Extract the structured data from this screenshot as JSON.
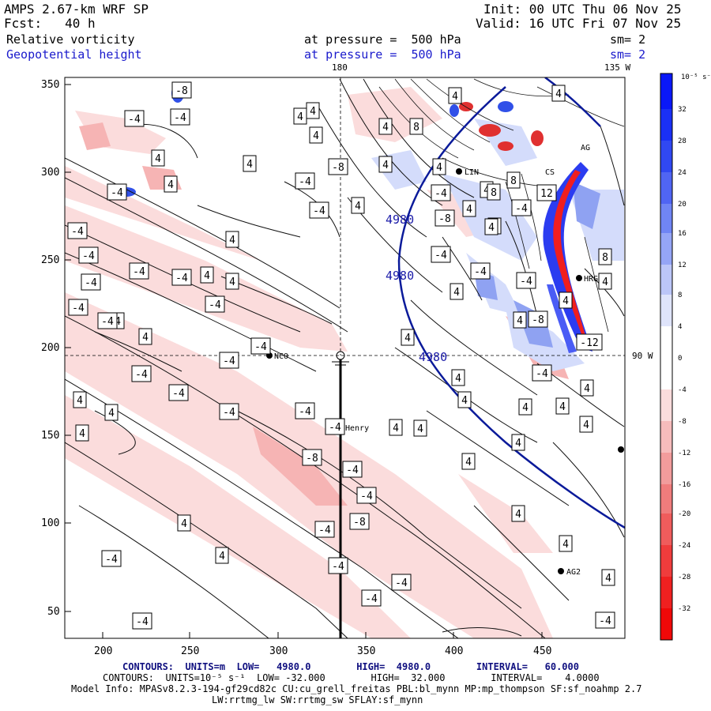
{
  "header": {
    "model": "AMPS 2.67-km WRF SP",
    "init": "Init: 00 UTC Thu 06 Nov 25",
    "forecast": "Fcst:   40 h",
    "valid": "Valid: 16 UTC Fri 07 Nov 25",
    "field1": "Relative vorticity",
    "field1_level": "at pressure =  500 hPa",
    "field1_smooth": "sm= 2",
    "field2": "Geopotential height",
    "field2_level": "at pressure =  500 hPa",
    "field2_smooth": "sm= 2"
  },
  "map": {
    "lon_180": "180",
    "lon_135w": "135 W",
    "lon_90w": "90 W",
    "x_ticks": [
      "200",
      "250",
      "300",
      "350",
      "400",
      "450"
    ],
    "y_ticks": [
      "350",
      "300",
      "250",
      "200",
      "150",
      "100",
      "50"
    ],
    "stations": [
      "NCO",
      "Henry",
      "AG2",
      "HRG",
      "LIN",
      "CS",
      "AG"
    ],
    "height_contour_labels": [
      "4980",
      "4980",
      "4980"
    ],
    "vorticity_labels_pos": [
      "4",
      "4",
      "4",
      "4",
      "4",
      "4",
      "4",
      "4",
      "4",
      "4",
      "4",
      "4",
      "4",
      "4",
      "4",
      "4",
      "4",
      "4",
      "4",
      "4",
      "4",
      "4",
      "4",
      "4",
      "4",
      "4",
      "4",
      "4",
      "4",
      "4",
      "4",
      "4",
      "4",
      "4",
      "4",
      "4",
      "4",
      "4",
      "4",
      "4",
      "4",
      "4",
      "4",
      "4",
      "8",
      "8",
      "8",
      "8",
      "12"
    ],
    "vorticity_labels_neg": [
      "-4",
      "-4",
      "-4",
      "-4",
      "-4",
      "-4",
      "-4",
      "-4",
      "-4",
      "-4",
      "-4",
      "-4",
      "-4",
      "-4",
      "-4",
      "-4",
      "-4",
      "-4",
      "-4",
      "-4",
      "-4",
      "-4",
      "-4",
      "-4",
      "-4",
      "-4",
      "-4",
      "-4",
      "-4",
      "-4",
      "-4",
      "-4",
      "-4",
      "-4",
      "-4",
      "-8",
      "-8",
      "-8",
      "-8",
      "-8",
      "-8",
      "-12"
    ]
  },
  "colorbar": {
    "unit": "10⁻⁵ s⁻¹",
    "ticks": [
      "32",
      "28",
      "24",
      "20",
      "16",
      "12",
      "8",
      "4",
      "0",
      "-4",
      "-8",
      "-12",
      "-16",
      "-20",
      "-24",
      "-28",
      "-32"
    ]
  },
  "footer": {
    "line1": "CONTOURS:  UNITS=m  LOW=   4980.0        HIGH=  4980.0        INTERVAL=   60.000",
    "line2": "CONTOURS:  UNITS=10⁻⁵ s⁻¹  LOW= -32.000        HIGH=  32.000        INTERVAL=    4.0000",
    "line3": "Model Info: MPASv8.2.3-194-gf29cd82c CU:cu_grell_freitas PBL:bl_mynn MP:mp_thompson SF:sf_noahmp 2.7",
    "line4": "LW:rrtmg_lw SW:rrtmg_sw SFLAY:sf_mynn"
  },
  "colors": {
    "positive": "#1010ee",
    "negative": "#ee1010",
    "height_contour": "#0a1a9a"
  }
}
